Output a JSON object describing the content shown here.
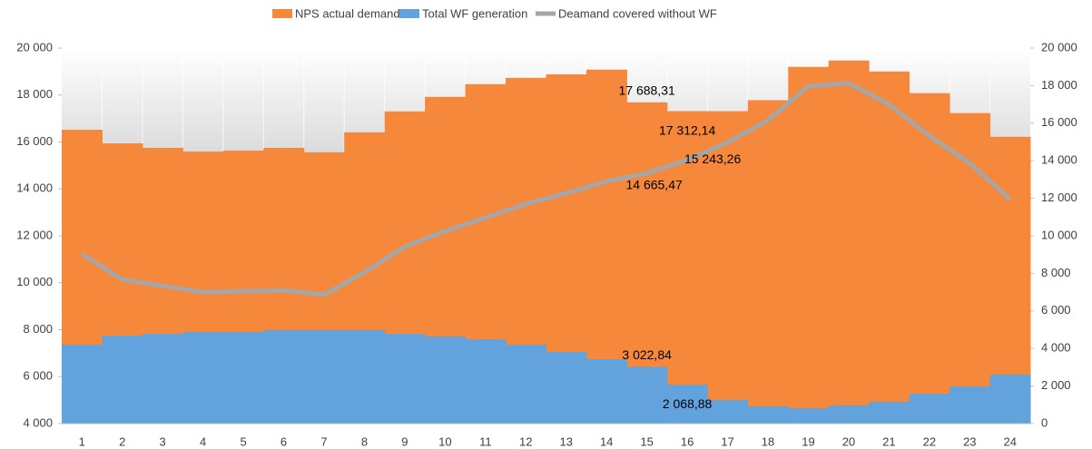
{
  "chart_data": {
    "type": "bar",
    "categories": [
      "1",
      "2",
      "3",
      "4",
      "5",
      "6",
      "7",
      "8",
      "9",
      "10",
      "11",
      "12",
      "13",
      "14",
      "15",
      "16",
      "17",
      "18",
      "19",
      "20",
      "21",
      "22",
      "23",
      "24"
    ],
    "ylim": [
      4000,
      20000
    ],
    "yticks": [
      {
        "value": 4000,
        "label": "4 000"
      },
      {
        "value": 6000,
        "label": "6 000"
      },
      {
        "value": 8000,
        "label": "8 000"
      },
      {
        "value": 10000,
        "label": "10 000"
      },
      {
        "value": 12000,
        "label": "12 000"
      },
      {
        "value": 14000,
        "label": "14 000"
      },
      {
        "value": 16000,
        "label": "16 000"
      },
      {
        "value": 18000,
        "label": "18 000"
      },
      {
        "value": 20000,
        "label": "20 000"
      }
    ],
    "y2lim": [
      0,
      20000
    ],
    "y2ticks": [
      0,
      {
        "value": 2000,
        "label": "2 000"
      },
      {
        "value": 4000,
        "label": "4 000"
      },
      {
        "value": 6000,
        "label": "6 000"
      },
      {
        "value": 8000,
        "label": "8 000"
      },
      {
        "value": 10000,
        "label": "10 000"
      },
      {
        "value": 12000,
        "label": "12 000"
      },
      {
        "value": 14000,
        "label": "14 000"
      },
      {
        "value": 16000,
        "label": "16 000"
      },
      {
        "value": 18000,
        "label": "18 000"
      },
      {
        "value": 20000,
        "label": "20 000"
      }
    ],
    "legend": "top",
    "series": [
      {
        "name": "NPS actual demand",
        "type": "bar",
        "axis": "y",
        "color": "#f5883b",
        "values": [
          16520,
          15940,
          15750,
          15590,
          15630,
          15750,
          15560,
          16410,
          17300,
          17920,
          18460,
          18730,
          18880,
          19080,
          17688.31,
          17312.14,
          17310,
          17780,
          19200,
          19470,
          19000,
          18080,
          17230,
          16220
        ],
        "value_labels": [
          null,
          null,
          null,
          null,
          null,
          null,
          null,
          null,
          null,
          null,
          null,
          null,
          null,
          null,
          "17 688,31",
          "17 312,14",
          null,
          null,
          null,
          null,
          null,
          null,
          null,
          null
        ]
      },
      {
        "name": "Total WF generation",
        "type": "bar",
        "axis": "y2",
        "color": "#62a3de",
        "values": [
          4200,
          4690,
          4780,
          4880,
          4880,
          4980,
          4980,
          4980,
          4780,
          4640,
          4490,
          4200,
          3820,
          3430,
          3022.84,
          2068.88,
          1260,
          920,
          820,
          970,
          1160,
          1590,
          1980,
          2610
        ],
        "value_labels": [
          null,
          null,
          null,
          null,
          null,
          null,
          null,
          null,
          null,
          null,
          null,
          null,
          null,
          null,
          "3 022,84",
          "2 068,88",
          null,
          null,
          null,
          null,
          null,
          null,
          null,
          null
        ]
      },
      {
        "name": "Deamand covered without WF",
        "type": "line",
        "axis": "y",
        "color": "#a6a6a6",
        "values": [
          11230,
          10140,
          9870,
          9600,
          9640,
          9680,
          9490,
          10450,
          11540,
          12200,
          12780,
          13360,
          13820,
          14320,
          14665.47,
          15243.26,
          15980,
          16930,
          18380,
          18500,
          17600,
          16260,
          15100,
          13550
        ],
        "value_labels": [
          null,
          null,
          null,
          null,
          null,
          null,
          null,
          null,
          null,
          null,
          null,
          null,
          null,
          null,
          "14 665,47",
          "15 243,26",
          null,
          null,
          null,
          null,
          null,
          null,
          null,
          null
        ]
      }
    ]
  }
}
